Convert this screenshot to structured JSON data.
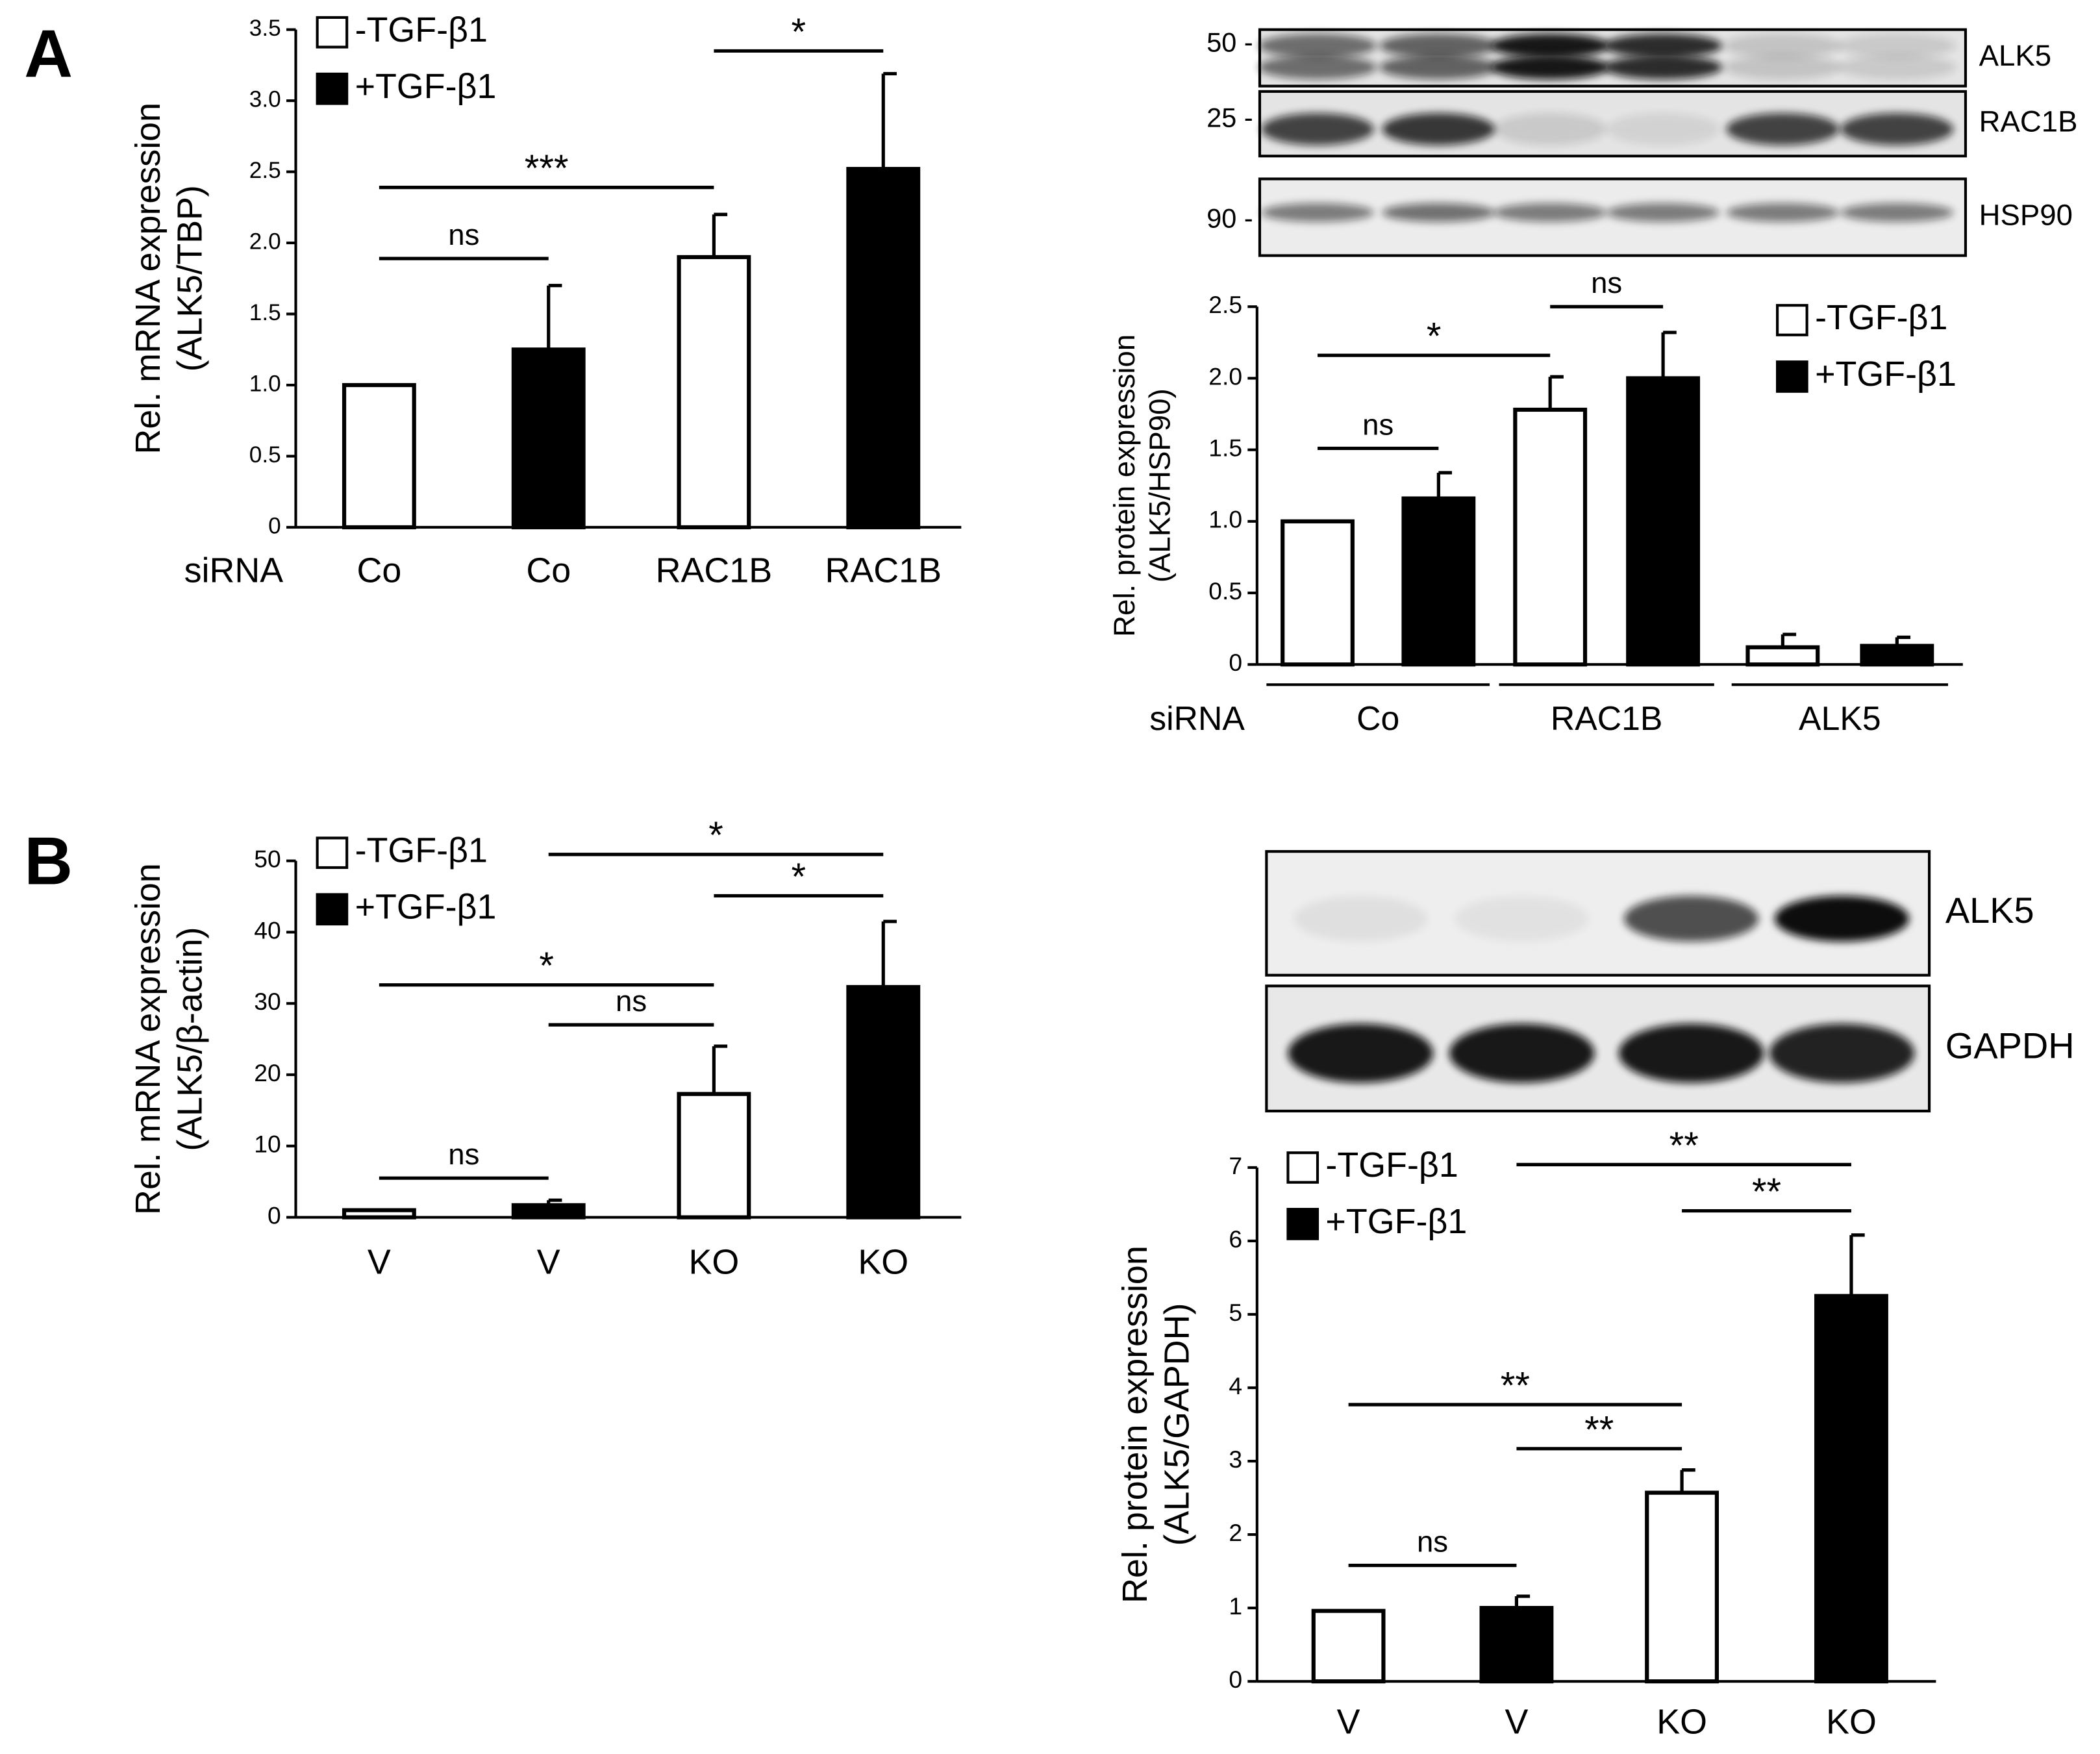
{
  "panels": [
    "A",
    "B"
  ],
  "blots": [
    {
      "rows": [
        {
          "marker": "50 -",
          "label": "ALK5"
        },
        {
          "marker": "25 -",
          "label": "RAC1B"
        },
        {
          "marker": "90 -",
          "label": "HSP90"
        }
      ]
    },
    {
      "rows": [
        {
          "label": "ALK5"
        },
        {
          "label": "GAPDH"
        }
      ]
    }
  ],
  "chart_data": [
    {
      "type": "bar",
      "ylabel": [
        "Rel. mRNA expression",
        "(ALK5/TBP)"
      ],
      "x_prefix": "siRNA",
      "categories": [
        "Co",
        "Co",
        "RAC1B",
        "RAC1B"
      ],
      "series": [
        {
          "name": "-TGF-β1",
          "color": "#ffffff",
          "values": [
            1.0,
            null,
            1.9,
            null
          ],
          "errors": [
            null,
            null,
            0.3,
            null
          ]
        },
        {
          "name": "+TGF-β1",
          "color": "#000000",
          "values": [
            null,
            1.25,
            null,
            2.52
          ],
          "errors": [
            null,
            0.45,
            null,
            0.67
          ]
        }
      ],
      "ylim": [
        0,
        3.5
      ],
      "yticks": [
        0,
        0.5,
        {
          "value": 1,
          "label": "1.0"
        },
        1.5,
        {
          "value": 2,
          "label": "2.0"
        },
        2.5,
        {
          "value": 3,
          "label": "3.0"
        },
        3.5
      ],
      "annotations": [
        {
          "text": "ns",
          "from": 0,
          "to": 1,
          "y": 1.89
        },
        {
          "text": "***",
          "from": 0,
          "to": 2,
          "y": 2.39
        },
        {
          "text": "*",
          "from": 2,
          "to": 3,
          "y": 3.35
        }
      ]
    },
    {
      "type": "bar",
      "ylabel": [
        "Rel. protein expression",
        "(ALK5/HSP90)"
      ],
      "x_prefix": "siRNA",
      "groups": [
        "Co",
        "RAC1B",
        "ALK5"
      ],
      "series": [
        {
          "name": "-TGF-β1",
          "color": "#ffffff",
          "values": [
            1.0,
            null,
            1.78,
            null,
            0.12,
            null
          ],
          "errors": [
            null,
            null,
            0.23,
            null,
            0.09,
            null
          ]
        },
        {
          "name": "+TGF-β1",
          "color": "#000000",
          "values": [
            null,
            1.16,
            null,
            2.0,
            null,
            0.13
          ],
          "errors": [
            null,
            0.18,
            null,
            0.32,
            null,
            0.06
          ]
        }
      ],
      "ylim": [
        0,
        2.5
      ],
      "yticks": [
        0,
        0.5,
        {
          "value": 1,
          "label": "1.0"
        },
        1.5,
        {
          "value": 2,
          "label": "2.0"
        },
        2.5
      ],
      "annotations": [
        {
          "text": "ns",
          "from": 0,
          "to": 1,
          "y": 1.51
        },
        {
          "text": "*",
          "from": 0,
          "to": 2,
          "y": 2.16
        },
        {
          "text": "ns",
          "from": 2,
          "to": 3,
          "y": 2.5
        }
      ]
    },
    {
      "type": "bar",
      "ylabel": [
        "Rel. mRNA expression",
        "(ALK5/β-actin)"
      ],
      "categories": [
        "V",
        "V",
        "KO",
        "KO"
      ],
      "series": [
        {
          "name": "-TGF-β1",
          "color": "#ffffff",
          "values": [
            1.0,
            null,
            17.3,
            null
          ],
          "errors": [
            null,
            null,
            6.7,
            null
          ]
        },
        {
          "name": "+TGF-β1",
          "color": "#000000",
          "values": [
            null,
            1.7,
            null,
            32.3
          ],
          "errors": [
            null,
            0.7,
            null,
            9.2
          ]
        }
      ],
      "ylim": [
        0,
        50
      ],
      "yticks": [
        0,
        10,
        20,
        30,
        40,
        50
      ],
      "annotations": [
        {
          "text": "ns",
          "from": 0,
          "to": 1,
          "y": 5.5
        },
        {
          "text": "ns",
          "from": 1,
          "to": 2,
          "y": 27
        },
        {
          "text": "*",
          "from": 0,
          "to": 2,
          "y": 32.6
        },
        {
          "text": "*",
          "from": 2,
          "to": 3,
          "y": 45.1
        },
        {
          "text": "*",
          "from": 1,
          "to": 3,
          "y": 50.9
        }
      ]
    },
    {
      "type": "bar",
      "ylabel": [
        "Rel. protein expression",
        "(ALK5/GAPDH)"
      ],
      "categories": [
        "V",
        "V",
        "KO",
        "KO"
      ],
      "series": [
        {
          "name": "-TGF-β1",
          "color": "#ffffff",
          "values": [
            0.96,
            null,
            2.57,
            null
          ],
          "errors": [
            null,
            null,
            0.31,
            null
          ]
        },
        {
          "name": "+TGF-β1",
          "color": "#000000",
          "values": [
            null,
            1.0,
            null,
            5.25
          ],
          "errors": [
            null,
            0.16,
            null,
            0.83
          ]
        }
      ],
      "ylim": [
        0,
        7
      ],
      "yticks": [
        0,
        1,
        2,
        3,
        4,
        5,
        6,
        7
      ],
      "annotations": [
        {
          "text": "ns",
          "from": 0,
          "to": 1,
          "y": 1.58
        },
        {
          "text": "**",
          "from": 1,
          "to": 2,
          "y": 3.17
        },
        {
          "text": "**",
          "from": 0,
          "to": 2,
          "y": 3.77
        },
        {
          "text": "**",
          "from": 2,
          "to": 3,
          "y": 6.41
        },
        {
          "text": "**",
          "from": 1,
          "to": 3,
          "y": 7.04
        }
      ]
    }
  ]
}
